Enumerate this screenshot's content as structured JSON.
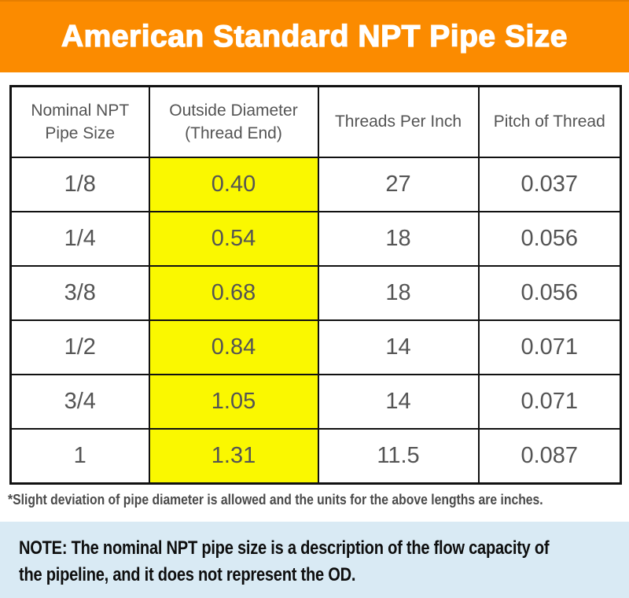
{
  "colors": {
    "banner_orange": "#FB8B00",
    "highlight_yellow": "#FAF800",
    "note_blue": "#D9EAF4",
    "table_text_gray": "#545454",
    "border_black": "#111111"
  },
  "banner": {
    "title": "American Standard NPT Pipe Size"
  },
  "table": {
    "column_headers": [
      "Nominal NPT\nPipe Size",
      "Outside Diameter\n(Thread End)",
      "Threads Per Inch",
      "Pitch of Thread"
    ]
  },
  "chart_data": {
    "type": "table",
    "title": "American Standard NPT Pipe Size",
    "columns": [
      "Nominal NPT Pipe Size",
      "Outside Diameter (Thread End)",
      "Threads Per Inch",
      "Pitch of Thread"
    ],
    "rows": [
      [
        "1/8",
        "0.40",
        "27",
        "0.037"
      ],
      [
        "1/4",
        "0.54",
        "18",
        "0.056"
      ],
      [
        "3/8",
        "0.68",
        "18",
        "0.056"
      ],
      [
        "1/2",
        "0.84",
        "14",
        "0.071"
      ],
      [
        "3/4",
        "1.05",
        "14",
        "0.071"
      ],
      [
        "1",
        "1.31",
        "11.5",
        "0.087"
      ]
    ],
    "highlighted_column": "Outside Diameter (Thread End)",
    "highlight_color": "#FAF800"
  },
  "footnote": {
    "text": "*Slight deviation of pipe diameter is allowed and the units for the above lengths are inches."
  },
  "note": {
    "text": "NOTE: The nominal NPT pipe size is a description of the flow capacity of\nthe pipeline, and it does not represent the OD."
  }
}
